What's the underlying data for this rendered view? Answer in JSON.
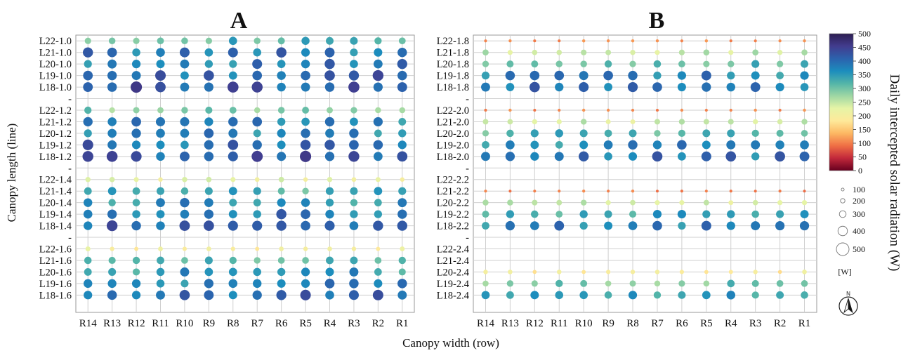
{
  "chart_data": {
    "type": "scatter",
    "subtype": "bubble-grid",
    "xlabel": "Canopy width (row)",
    "ylabel": "Canopy length (line)",
    "rows": [
      "R14",
      "R13",
      "R12",
      "R11",
      "R10",
      "R9",
      "R8",
      "R7",
      "R6",
      "R5",
      "R4",
      "R3",
      "R2",
      "R1"
    ],
    "grid": true,
    "colorbar": {
      "label": "Daily intercepted solar radiation (W)",
      "min": 0,
      "max": 500,
      "ticks": [
        0,
        50,
        100,
        150,
        200,
        250,
        300,
        350,
        400,
        450,
        500
      ],
      "colors": [
        "#67001f",
        "#c2283b",
        "#ef6f45",
        "#fdb863",
        "#fee99a",
        "#e6f4a6",
        "#9fd7a4",
        "#54b5a8",
        "#1c8dbd",
        "#2c62ad",
        "#423c8e",
        "#2d1e52"
      ]
    },
    "size_legend": {
      "values": [
        100,
        200,
        300,
        400,
        500
      ],
      "unit": "[W]"
    },
    "north_label": "N",
    "panels": [
      {
        "title": "A",
        "groups": [
          {
            "lines": [
              {
                "label": "L22-1.0",
                "base": 320
              },
              {
                "label": "L21-1.0",
                "base": 385
              },
              {
                "label": "L20-1.0",
                "base": 380
              },
              {
                "label": "L19-1.0",
                "base": 400
              },
              {
                "label": "L18-1.0",
                "base": 420
              }
            ]
          },
          {
            "lines": [
              {
                "label": "L22-1.2",
                "base": 290
              },
              {
                "label": "L21-1.2",
                "base": 370
              },
              {
                "label": "L20-1.2",
                "base": 370
              },
              {
                "label": "L19-1.2",
                "base": 395
              },
              {
                "label": "L18-1.2",
                "base": 415
              }
            ]
          },
          {
            "lines": [
              {
                "label": "L22-1.4",
                "base": 220
              },
              {
                "label": "L21-1.4",
                "base": 330
              },
              {
                "label": "L20-1.4",
                "base": 360
              },
              {
                "label": "L19-1.4",
                "base": 385
              },
              {
                "label": "L18-1.4",
                "base": 405
              }
            ]
          },
          {
            "lines": [
              {
                "label": "L22-1.6",
                "base": 200
              },
              {
                "label": "L21-1.6",
                "base": 310
              },
              {
                "label": "L20-1.6",
                "base": 350
              },
              {
                "label": "L19-1.6",
                "base": 380
              },
              {
                "label": "L18-1.6",
                "base": 395
              }
            ]
          }
        ]
      },
      {
        "title": "B",
        "groups": [
          {
            "lines": [
              {
                "label": "L22-1.8",
                "base": 110
              },
              {
                "label": "L21-1.8",
                "base": 250
              },
              {
                "label": "L20-1.8",
                "base": 320
              },
              {
                "label": "L19-1.8",
                "base": 370
              },
              {
                "label": "L18-1.8",
                "base": 385
              }
            ]
          },
          {
            "lines": [
              {
                "label": "L22-2.0",
                "base": 105
              },
              {
                "label": "L21-2.0",
                "base": 240
              },
              {
                "label": "L20-2.0",
                "base": 320
              },
              {
                "label": "L19-2.0",
                "base": 370
              },
              {
                "label": "L18-2.0",
                "base": 385
              }
            ]
          },
          {
            "lines": [
              {
                "label": "L22-2.2",
                "base": null
              },
              {
                "label": "L21-2.2",
                "base": 100
              },
              {
                "label": "L20-2.2",
                "base": 240
              },
              {
                "label": "L19-2.2",
                "base": 340
              },
              {
                "label": "L18-2.2",
                "base": 375
              }
            ]
          },
          {
            "lines": [
              {
                "label": "L22-2.4",
                "base": null
              },
              {
                "label": "L21-2.4",
                "base": null
              },
              {
                "label": "L20-2.4",
                "base": 190
              },
              {
                "label": "L19-2.4",
                "base": 300
              },
              {
                "label": "L18-2.4",
                "base": 350
              }
            ]
          }
        ]
      }
    ]
  }
}
